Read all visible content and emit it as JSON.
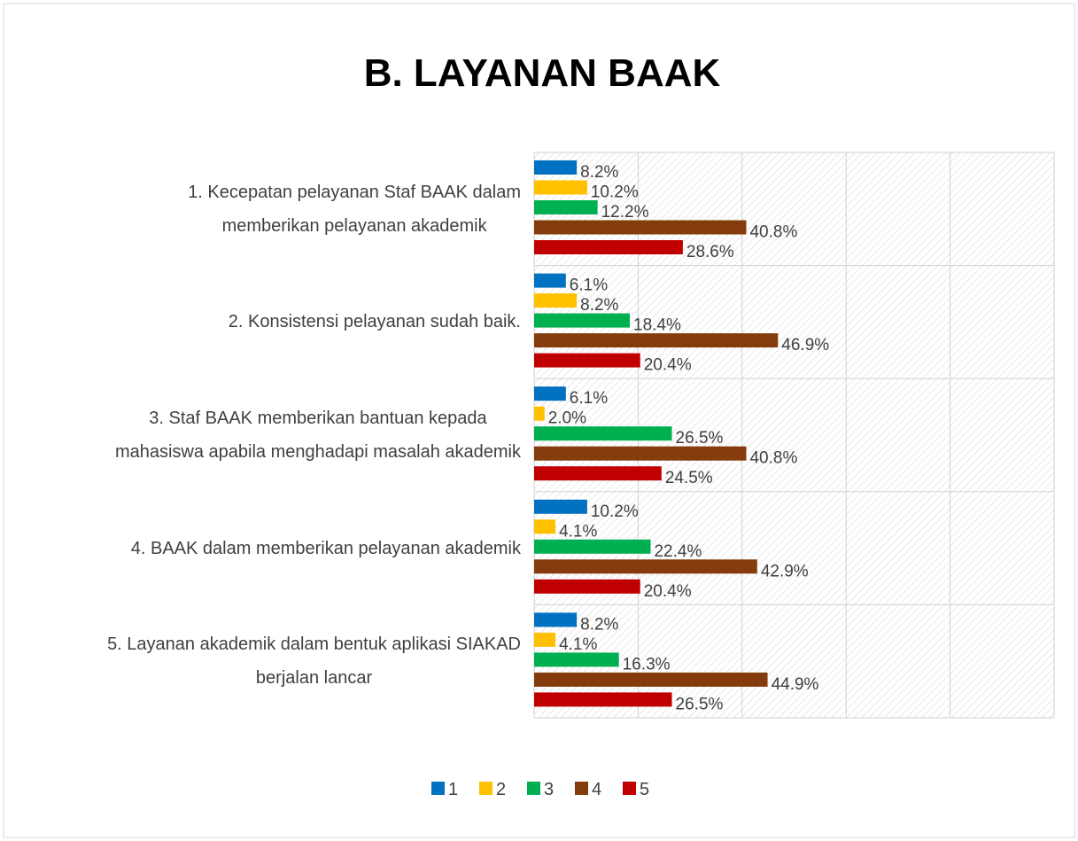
{
  "chart_data": {
    "type": "hbar",
    "title": "B. LAYANAN BAAK",
    "categories": [
      "1. Kecepatan pelayanan Staf BAAK dalam\nmemberikan pelayanan akademik",
      "2. Konsistensi pelayanan sudah baik.",
      "3. Staf BAAK memberikan bantuan kepada\nmahasiswa apabila menghadapi masalah akademik",
      "4. BAAK dalam memberikan pelayanan akademik",
      "5. Layanan akademik dalam bentuk aplikasi SIAKAD\nberjalan lancar"
    ],
    "series": [
      {
        "name": "1",
        "color": "#0070c0",
        "values": [
          8.2,
          6.1,
          6.1,
          10.2,
          8.2
        ],
        "value_labels": [
          "8.2%",
          "6.1%",
          "6.1%",
          "10.2%",
          "8.2%"
        ]
      },
      {
        "name": "2",
        "color": "#ffc000",
        "values": [
          10.2,
          8.2,
          2.0,
          4.1,
          4.1
        ],
        "value_labels": [
          "10.2%",
          "8.2%",
          "2.0%",
          "4.1%",
          "4.1%"
        ]
      },
      {
        "name": "3",
        "color": "#00b050",
        "values": [
          12.2,
          18.4,
          26.5,
          22.4,
          16.3
        ],
        "value_labels": [
          "12.2%",
          "18.4%",
          "26.5%",
          "22.4%",
          "16.3%"
        ]
      },
      {
        "name": "4",
        "color": "#843c0c",
        "values": [
          40.8,
          46.9,
          40.8,
          42.9,
          44.9
        ],
        "value_labels": [
          "40.8%",
          "46.9%",
          "40.8%",
          "42.9%",
          "44.9%"
        ]
      },
      {
        "name": "5",
        "color": "#c00000",
        "values": [
          28.6,
          20.4,
          24.5,
          20.4,
          26.5
        ],
        "value_labels": [
          "28.6%",
          "20.4%",
          "24.5%",
          "20.4%",
          "26.5%"
        ]
      }
    ],
    "xlim": [
      0,
      100
    ],
    "xticks": [
      0,
      20,
      40,
      60,
      80,
      100
    ],
    "grid": true,
    "legend": "bottom"
  }
}
